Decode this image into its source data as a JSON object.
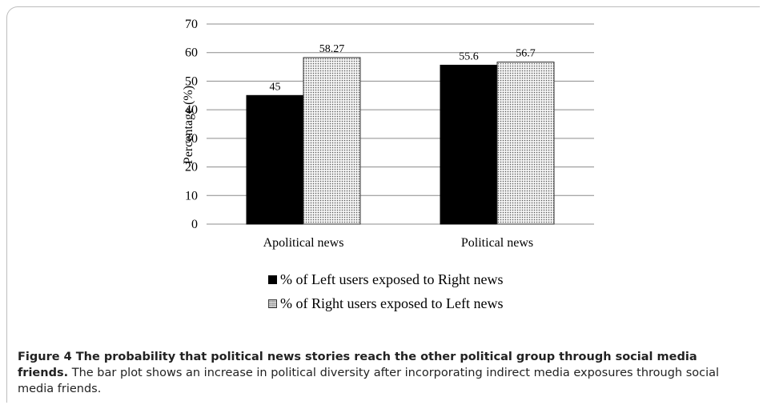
{
  "chart_data": {
    "type": "bar",
    "categories": [
      "Apolitical news",
      "Political news"
    ],
    "series": [
      {
        "name": "% of Left users exposed to Right news",
        "values": [
          45,
          55.6
        ],
        "value_labels": [
          "45",
          "55.6"
        ],
        "color": "#000000",
        "pattern": "solid"
      },
      {
        "name": "% of Right users exposed to Left news",
        "values": [
          58.27,
          56.7
        ],
        "value_labels": [
          "58.27",
          "56.7"
        ],
        "color": "#d8d8d8",
        "pattern": "dotted"
      }
    ],
    "ylabel": "Percentage (%)",
    "xlabel": "",
    "ylim": [
      0,
      70
    ],
    "yticks": [
      0,
      10,
      20,
      30,
      40,
      50,
      60,
      70
    ],
    "grid": true,
    "legend_position": "bottom"
  },
  "caption": {
    "title": "Figure 4  The probability that political news stories reach the other political group through social media friends.",
    "text": " The bar plot shows an increase in political diversity after incorporating indirect media exposures through social media friends."
  }
}
